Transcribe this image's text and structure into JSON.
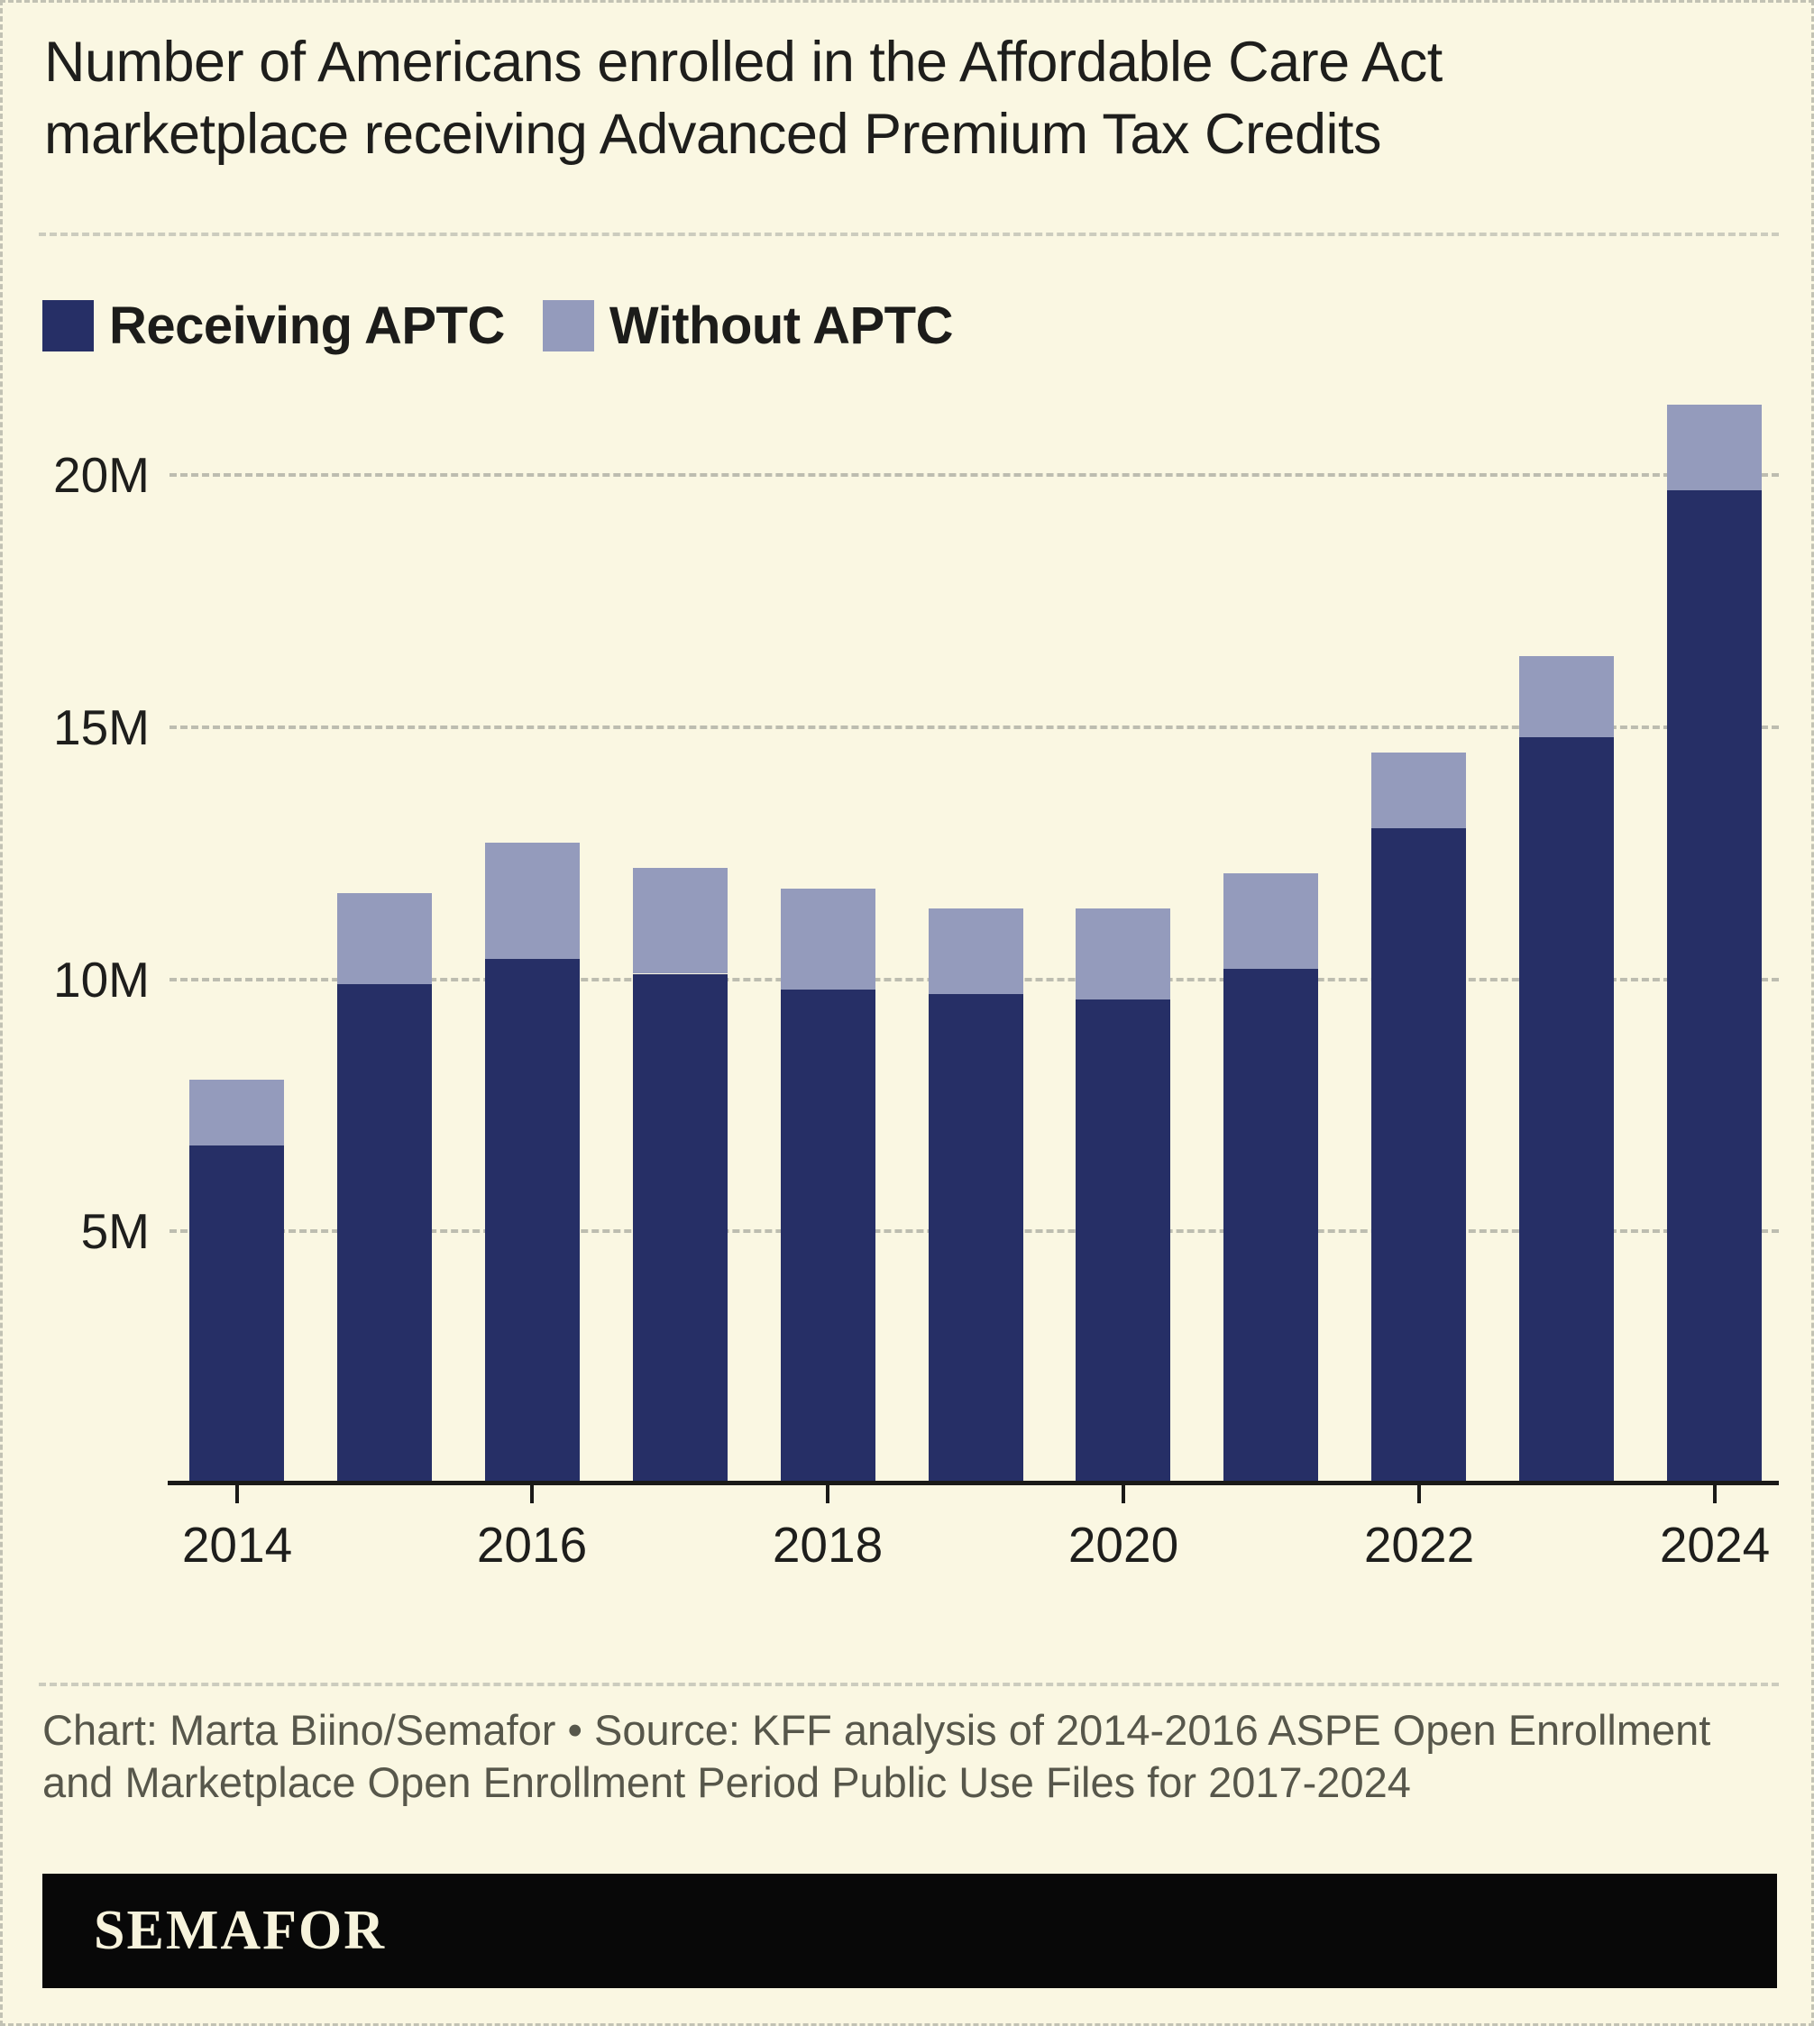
{
  "title": "Number of Americans enrolled in the Affordable Care Act marketplace receiving Advanced Premium Tax Credits",
  "legend": [
    {
      "label": "Receiving APTC",
      "color": "#262f66"
    },
    {
      "label": "Without APTC",
      "color": "#949bbc"
    }
  ],
  "chart_data": {
    "type": "bar",
    "stacked": true,
    "title": "Number of Americans enrolled in the Affordable Care Act marketplace receiving Advanced Premium Tax Credits",
    "unit": "millions of people",
    "categories": [
      2014,
      2015,
      2016,
      2017,
      2018,
      2019,
      2020,
      2021,
      2022,
      2023,
      2024
    ],
    "series": [
      {
        "name": "Receiving APTC",
        "color": "#262f66",
        "values": [
          6.7,
          9.9,
          10.4,
          10.1,
          9.8,
          9.7,
          9.6,
          10.2,
          13.0,
          14.8,
          19.7
        ]
      },
      {
        "name": "Without APTC",
        "color": "#949bbc",
        "values": [
          1.3,
          1.8,
          2.3,
          2.1,
          2.0,
          1.7,
          1.8,
          1.9,
          1.5,
          1.6,
          1.7
        ]
      }
    ],
    "totals": [
      8.0,
      11.7,
      12.7,
      12.2,
      11.8,
      11.4,
      11.4,
      12.1,
      14.5,
      16.4,
      21.4
    ],
    "ylim": [
      0,
      22
    ],
    "yticks": [
      {
        "label": "5M",
        "value": 5
      },
      {
        "label": "10M",
        "value": 10
      },
      {
        "label": "15M",
        "value": 15
      },
      {
        "label": "20M",
        "value": 20
      }
    ],
    "xticks": [
      {
        "label": "2014",
        "value": 2014
      },
      {
        "label": "2016",
        "value": 2016
      },
      {
        "label": "2018",
        "value": 2018
      },
      {
        "label": "2020",
        "value": 2020
      },
      {
        "label": "2022",
        "value": 2022
      },
      {
        "label": "2024",
        "value": 2024
      }
    ],
    "grid": "dashed-horizontal",
    "legend_position": "top-left"
  },
  "footer": {
    "credit": "Chart: Marta Biino/Semafor • Source: KFF analysis of 2014-2016 ASPE Open Enrollment and Marketplace Open Enrollment Period Public Use Files for 2017-2024",
    "logo": "SEMAFOR"
  },
  "colors": {
    "background": "#faf7e2",
    "accent_navy": "#262f66",
    "accent_lavender": "#949bbc",
    "grid": "#bdbdb0",
    "axis": "#1a1a18",
    "text": "#1e1e1c",
    "muted_text": "#57574b",
    "logo_bar": "#080808",
    "logo_text": "#f7f3dc"
  }
}
